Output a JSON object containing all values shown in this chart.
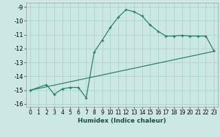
{
  "xlabel": "Humidex (Indice chaleur)",
  "background_color": "#cce8e4",
  "grid_color": "#aad4cc",
  "line_color": "#2a7a6a",
  "xlim": [
    -0.5,
    23.5
  ],
  "ylim": [
    -16.2,
    -8.7
  ],
  "x_ticks": [
    0,
    1,
    2,
    3,
    4,
    5,
    6,
    7,
    8,
    9,
    10,
    11,
    12,
    13,
    14,
    15,
    16,
    17,
    18,
    19,
    20,
    21,
    22,
    23
  ],
  "y_ticks": [
    -16,
    -15,
    -14,
    -13,
    -12,
    -11,
    -10,
    -9
  ],
  "curve1_x": [
    0,
    2,
    3,
    4,
    5,
    6,
    7,
    8,
    9,
    10,
    11,
    12,
    13,
    14,
    15,
    16,
    17,
    18,
    19,
    20,
    21,
    22,
    23
  ],
  "curve1_y": [
    -15.0,
    -14.6,
    -15.3,
    -14.9,
    -14.8,
    -14.8,
    -15.55,
    -12.25,
    -11.4,
    -10.5,
    -9.75,
    -9.2,
    -9.35,
    -9.65,
    -10.3,
    -10.75,
    -11.1,
    -11.1,
    -11.05,
    -11.1,
    -11.1,
    -11.1,
    -12.15
  ],
  "curve2_x": [
    0,
    23
  ],
  "curve2_y": [
    -15.0,
    -12.2
  ]
}
